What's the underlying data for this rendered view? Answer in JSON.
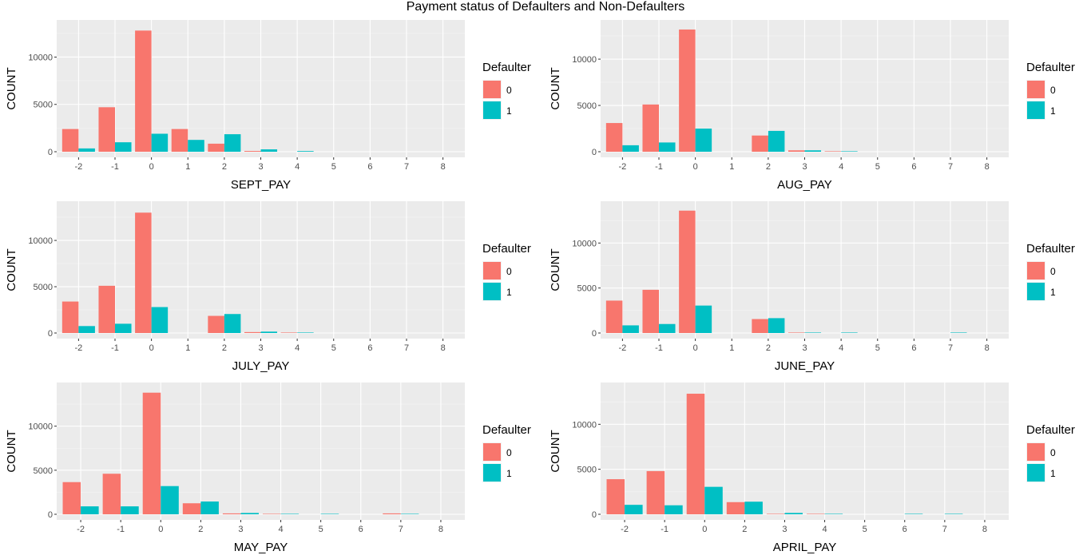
{
  "title": "Payment status of Defaulters and Non-Defaulters",
  "legend": {
    "title": "Defaulter",
    "items": [
      {
        "label": "0",
        "color": "#F8766D"
      },
      {
        "label": "1",
        "color": "#00BFC4"
      }
    ]
  },
  "chart_data": [
    {
      "type": "bar",
      "xlabel": "SEPT_PAY",
      "ylabel": "COUNT",
      "ylim": [
        0,
        13500
      ],
      "yticks": [
        0,
        5000,
        10000
      ],
      "categories": [
        "-2",
        "-1",
        "0",
        "1",
        "2",
        "3",
        "4",
        "5",
        "6",
        "7",
        "8"
      ],
      "series": [
        {
          "name": "0",
          "values": [
            2400,
            4700,
            12800,
            2400,
            850,
            80,
            0,
            0,
            0,
            0,
            0
          ]
        },
        {
          "name": "1",
          "values": [
            350,
            1000,
            1900,
            1250,
            1850,
            250,
            70,
            0,
            0,
            0,
            0
          ]
        }
      ],
      "legend_position": "right"
    },
    {
      "type": "bar",
      "xlabel": "AUG_PAY",
      "ylabel": "COUNT",
      "ylim": [
        0,
        13800
      ],
      "yticks": [
        0,
        5000,
        10000
      ],
      "categories": [
        "-2",
        "-1",
        "0",
        "1",
        "2",
        "3",
        "4",
        "5",
        "6",
        "7",
        "8"
      ],
      "series": [
        {
          "name": "0",
          "values": [
            3100,
            5100,
            13200,
            0,
            1750,
            150,
            50,
            0,
            0,
            0,
            0
          ]
        },
        {
          "name": "1",
          "values": [
            700,
            1000,
            2500,
            0,
            2250,
            150,
            50,
            0,
            0,
            0,
            0
          ]
        }
      ],
      "legend_position": "right"
    },
    {
      "type": "bar",
      "xlabel": "JULY_PAY",
      "ylabel": "COUNT",
      "ylim": [
        0,
        13800
      ],
      "yticks": [
        0,
        5000,
        10000
      ],
      "categories": [
        "-2",
        "-1",
        "0",
        "1",
        "2",
        "3",
        "4",
        "5",
        "6",
        "7",
        "8"
      ],
      "series": [
        {
          "name": "0",
          "values": [
            3400,
            5100,
            13000,
            0,
            1850,
            100,
            50,
            0,
            0,
            0,
            0
          ]
        },
        {
          "name": "1",
          "values": [
            750,
            1000,
            2800,
            0,
            2050,
            150,
            50,
            0,
            0,
            0,
            0
          ]
        }
      ],
      "legend_position": "right"
    },
    {
      "type": "bar",
      "xlabel": "JUNE_PAY",
      "ylabel": "COUNT",
      "ylim": [
        0,
        14200
      ],
      "yticks": [
        0,
        5000,
        10000
      ],
      "categories": [
        "-2",
        "-1",
        "0",
        "1",
        "2",
        "3",
        "4",
        "5",
        "6",
        "7",
        "8"
      ],
      "series": [
        {
          "name": "0",
          "values": [
            3600,
            4800,
            13600,
            0,
            1550,
            50,
            0,
            0,
            0,
            0,
            0
          ]
        },
        {
          "name": "1",
          "values": [
            850,
            1000,
            3050,
            0,
            1650,
            50,
            50,
            0,
            0,
            50,
            0
          ]
        }
      ],
      "legend_position": "right"
    },
    {
      "type": "bar",
      "xlabel": "MAY_PAY",
      "ylabel": "COUNT",
      "ylim": [
        0,
        14500
      ],
      "yticks": [
        0,
        5000,
        10000
      ],
      "categories": [
        "-2",
        "-1",
        "0",
        "2",
        "3",
        "4",
        "5",
        "6",
        "7",
        "8"
      ],
      "series": [
        {
          "name": "0",
          "values": [
            3650,
            4600,
            13800,
            1250,
            100,
            50,
            0,
            0,
            100,
            0
          ]
        },
        {
          "name": "1",
          "values": [
            900,
            900,
            3200,
            1450,
            150,
            50,
            50,
            0,
            50,
            0
          ]
        }
      ],
      "legend_position": "right"
    },
    {
      "type": "bar",
      "xlabel": "APRIL_PAY",
      "ylabel": "COUNT",
      "ylim": [
        0,
        14200
      ],
      "yticks": [
        0,
        5000,
        10000
      ],
      "categories": [
        "-2",
        "-1",
        "0",
        "2",
        "3",
        "4",
        "5",
        "6",
        "7",
        "8"
      ],
      "series": [
        {
          "name": "0",
          "values": [
            3900,
            4800,
            13400,
            1350,
            50,
            50,
            0,
            0,
            0,
            0
          ]
        },
        {
          "name": "1",
          "values": [
            1050,
            1000,
            3050,
            1400,
            150,
            50,
            0,
            50,
            50,
            0
          ]
        }
      ],
      "legend_position": "right"
    }
  ]
}
